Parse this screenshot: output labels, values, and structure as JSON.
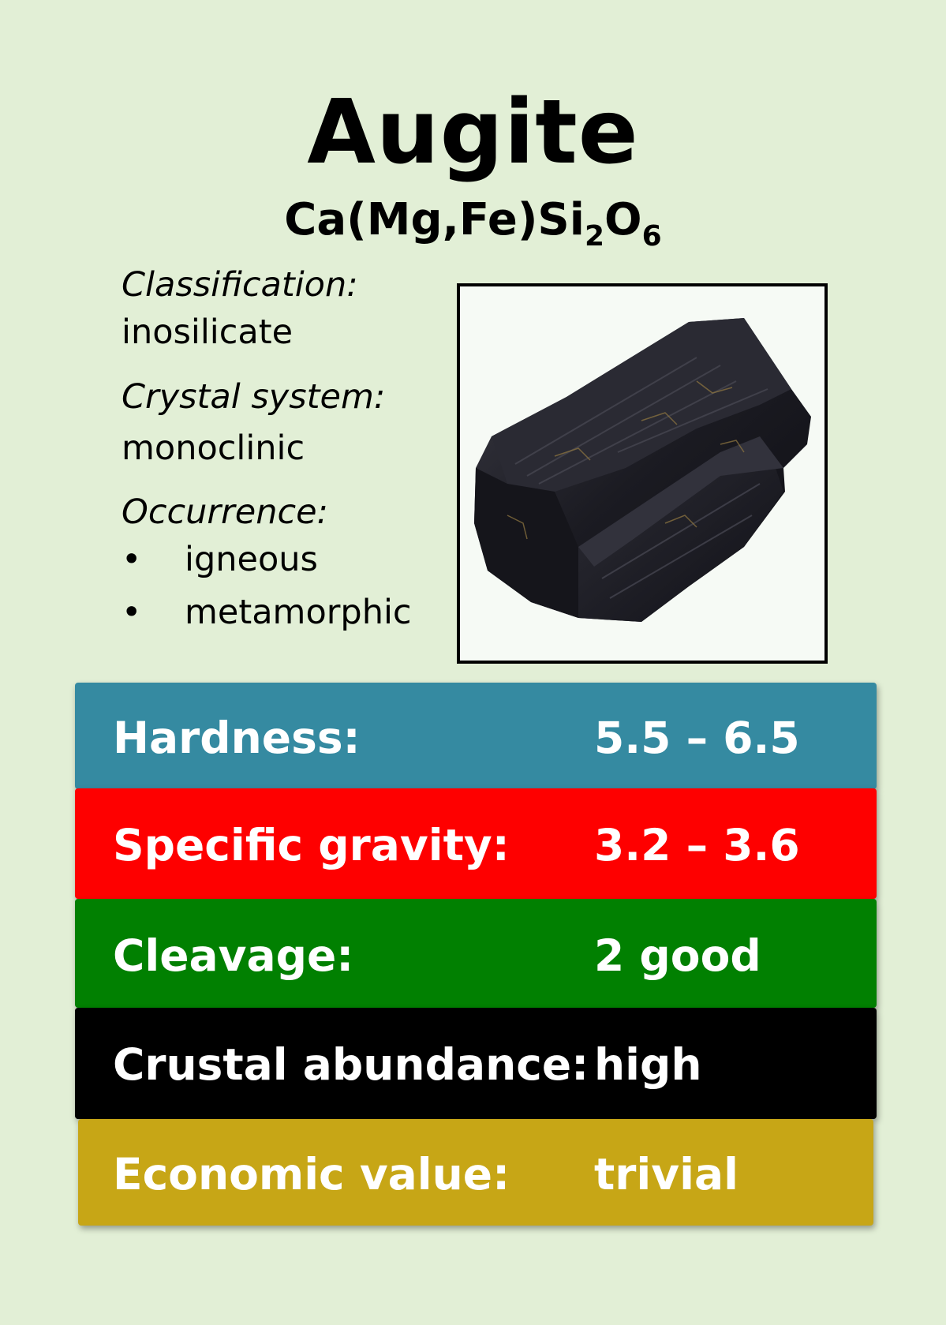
{
  "card": {
    "title": "Augite",
    "formula": {
      "part1": "Ca(Mg,Fe)Si",
      "sub1": "2",
      "part2": "O",
      "sub2": "6"
    },
    "classification_label": "Classification:",
    "classification_value": "inosilicate",
    "crystal_label": "Crystal system:",
    "crystal_value": "monoclinic",
    "occurrence_label": "Occurrence:",
    "occurrence_items": [
      "igneous",
      "metamorphic"
    ],
    "bullet": "•"
  },
  "properties": [
    {
      "label": "Hardness:",
      "value": "5.5 – 6.5",
      "color": "#358aa1"
    },
    {
      "label": "Specific gravity:",
      "value": "3.2 – 3.6",
      "color": "#fe0000"
    },
    {
      "label": "Cleavage:",
      "value": "2 good",
      "color": "#018001"
    },
    {
      "label": "Crustal abundance:",
      "value": "high",
      "color": "#000000"
    },
    {
      "label": "Economic value:",
      "value": "trivial",
      "color": "#c7a616"
    }
  ]
}
